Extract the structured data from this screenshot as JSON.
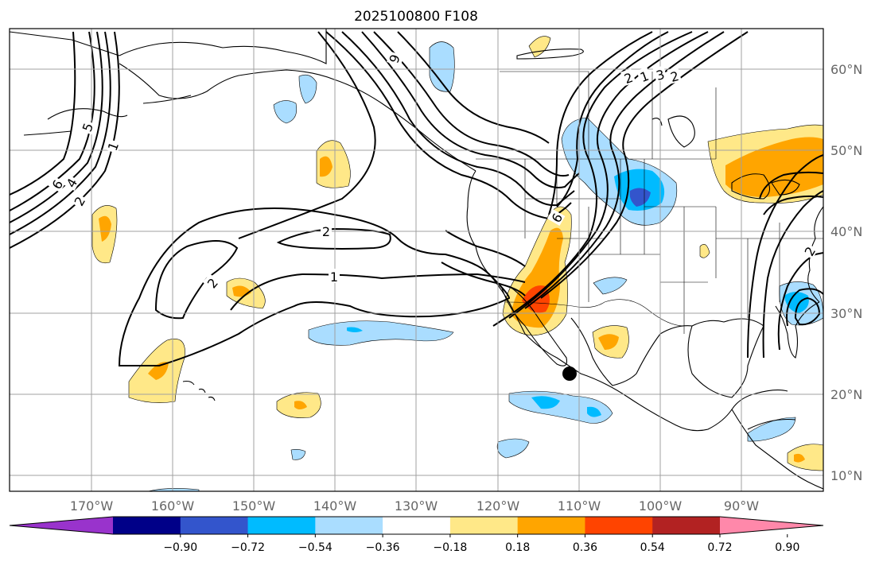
{
  "title": "2025100800 F108",
  "colors": {
    "land_line": "#000000",
    "grid": "#a0a0a0",
    "contour": "#000000",
    "storm_marker": "#000000"
  },
  "lat_labels": [
    "60°N",
    "50°N",
    "40°N",
    "30°N",
    "20°N",
    "10°N"
  ],
  "lon_labels": [
    "170°W",
    "160°W",
    "150°W",
    "140°W",
    "130°W",
    "120°W",
    "110°W",
    "100°W",
    "90°W"
  ],
  "contour_labels": [
    "2",
    "2",
    "1",
    "6",
    "5",
    "1",
    "6",
    "4",
    "2",
    "2",
    "1",
    "3",
    "2",
    "2",
    "6"
  ],
  "colorbar": {
    "bins": [
      {
        "color": "#9933cc"
      },
      {
        "color": "#000088"
      },
      {
        "color": "#3355cc"
      },
      {
        "color": "#00bbff"
      },
      {
        "color": "#aaddff"
      },
      {
        "color": "#ffffff"
      },
      {
        "color": "#ffe888"
      },
      {
        "color": "#ffa500"
      },
      {
        "color": "#ff4400"
      },
      {
        "color": "#b22222"
      },
      {
        "color": "#ff88aa"
      }
    ],
    "tick_labels": [
      "−0.90",
      "−0.72",
      "−0.54",
      "−0.36",
      "−0.18",
      "0.18",
      "0.36",
      "0.54",
      "0.72",
      "0.90"
    ]
  }
}
